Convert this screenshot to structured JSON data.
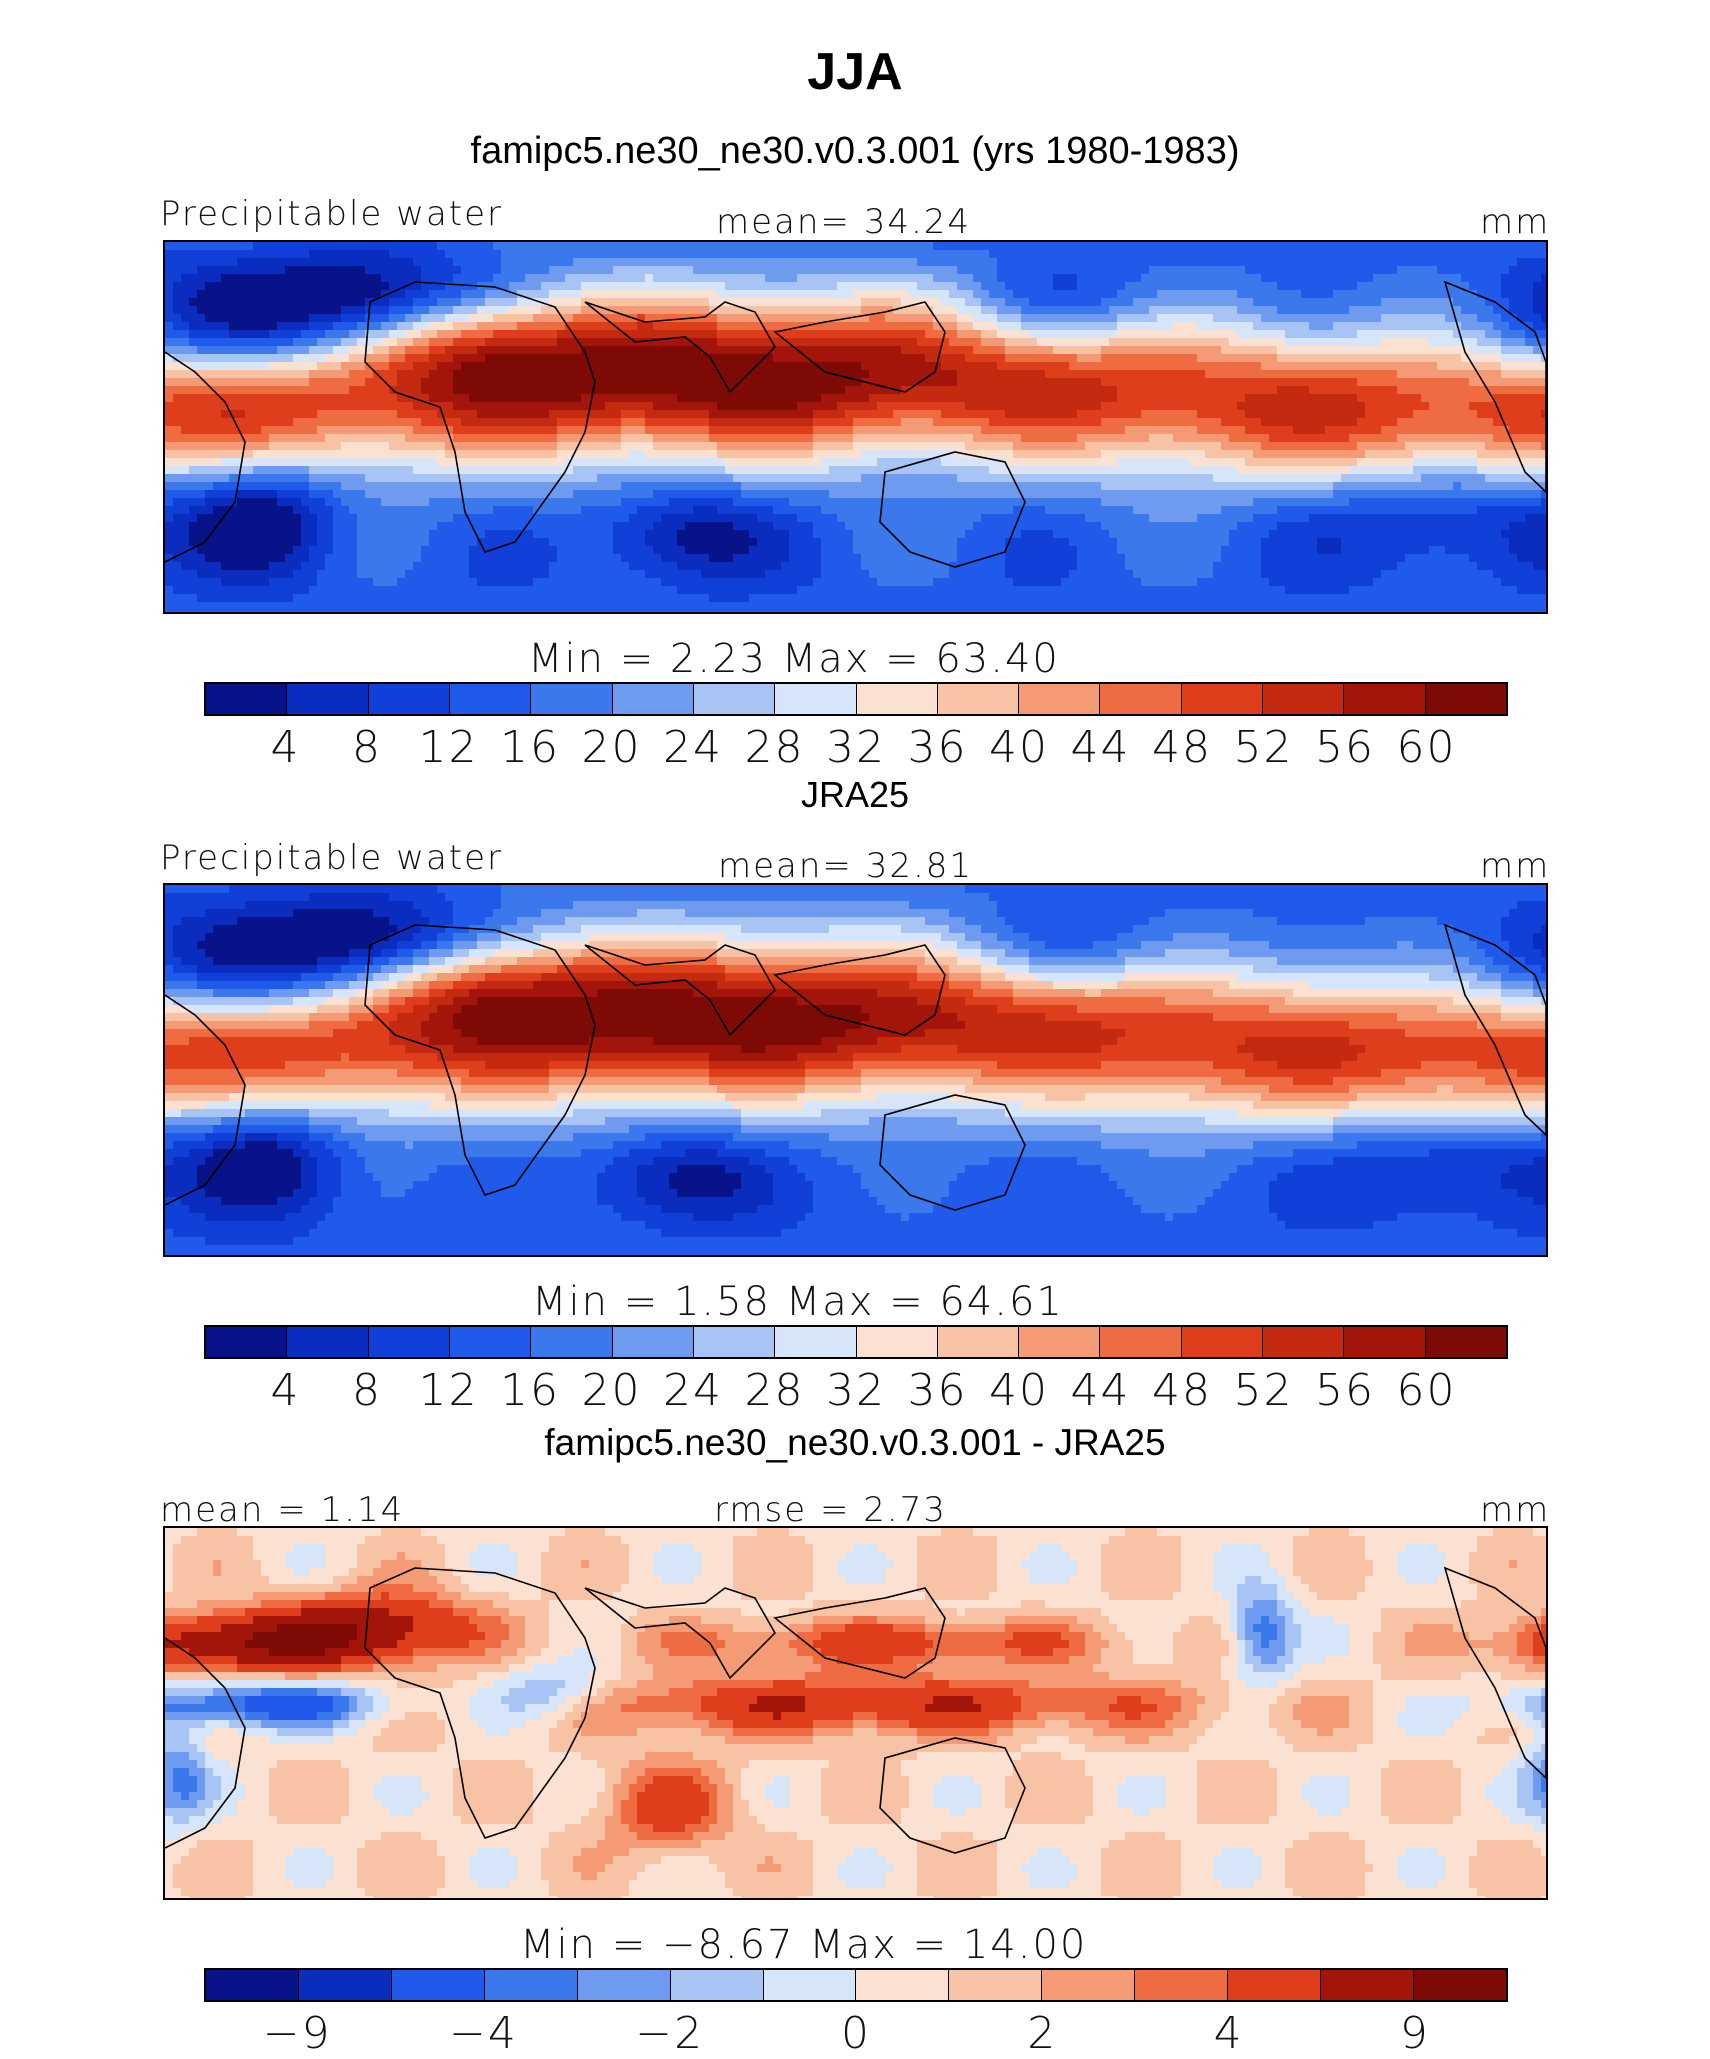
{
  "title": "JJA",
  "panels": [
    {
      "subtitle": "famipc5.ne30_ne30.v0.3.001 (yrs 1980-1983)",
      "left_label": "Precipitable water",
      "center_label": "mean=   34.24",
      "right_label": "mm",
      "stats": "Min  =     2.23  Max  =    63.40",
      "ticks": [
        "4",
        "8",
        "12",
        "16",
        "20",
        "24",
        "28",
        "32",
        "36",
        "40",
        "44",
        "48",
        "52",
        "56",
        "60"
      ],
      "mode": "abs"
    },
    {
      "subtitle": "JRA25",
      "left_label": "Precipitable water",
      "center_label": "mean=   32.81",
      "right_label": "mm",
      "stats": "Min  =     1.58  Max  =    64.61",
      "ticks": [
        "4",
        "8",
        "12",
        "16",
        "20",
        "24",
        "28",
        "32",
        "36",
        "40",
        "44",
        "48",
        "52",
        "56",
        "60"
      ],
      "mode": "abs"
    },
    {
      "subtitle": "famipc5.ne30_ne30.v0.3.001 - JRA25",
      "left_label": "mean  =    1.14",
      "center_label": "rmse  =    2.73",
      "right_label": "mm",
      "stats": "Min  =   −8.67  Max  =    14.00",
      "ticks": [
        "−9",
        "",
        "−4",
        "",
        "−2",
        "",
        "0",
        "",
        "2",
        "",
        "4",
        "",
        "9"
      ],
      "mode": "diff"
    }
  ],
  "colors": {
    "abs_palette": [
      "#08138a",
      "#0b2dbf",
      "#1040d8",
      "#1f5aeb",
      "#3a78ec",
      "#6e9bef",
      "#a7c4f4",
      "#d6e5f9",
      "#fbe1d1",
      "#f8c3a5",
      "#f49a74",
      "#ef6c43",
      "#de3e1b",
      "#c42a10",
      "#a3150a",
      "#7e0a05"
    ],
    "diff_palette": [
      "#08138a",
      "#0b2dbf",
      "#1f5aeb",
      "#3a78ec",
      "#6e9bef",
      "#a7c4f4",
      "#d6e5f9",
      "#fbe1d1",
      "#f8c3a5",
      "#f49a74",
      "#ef6c43",
      "#de3e1b",
      "#a3150a",
      "#7e0a05"
    ]
  },
  "chart_data": [
    {
      "type": "heatmap",
      "title": "famipc5.ne30_ne30.v0.3.001 (yrs 1980-1983)",
      "variable": "Precipitable water",
      "units": "mm",
      "mean": 34.24,
      "min": 2.23,
      "max": 63.4,
      "levels": [
        4,
        8,
        12,
        16,
        20,
        24,
        28,
        32,
        36,
        40,
        44,
        48,
        52,
        56,
        60
      ]
    },
    {
      "type": "heatmap",
      "title": "JRA25",
      "variable": "Precipitable water",
      "units": "mm",
      "mean": 32.81,
      "min": 1.58,
      "max": 64.61,
      "levels": [
        4,
        8,
        12,
        16,
        20,
        24,
        28,
        32,
        36,
        40,
        44,
        48,
        52,
        56,
        60
      ]
    },
    {
      "type": "heatmap",
      "title": "famipc5.ne30_ne30.v0.3.001 - JRA25",
      "units": "mm",
      "mean": 1.14,
      "rmse": 2.73,
      "min": -8.67,
      "max": 14.0,
      "levels": [
        -9,
        -6,
        -4,
        -3,
        -2,
        -1,
        0,
        1,
        2,
        3,
        4,
        6,
        9
      ]
    }
  ]
}
